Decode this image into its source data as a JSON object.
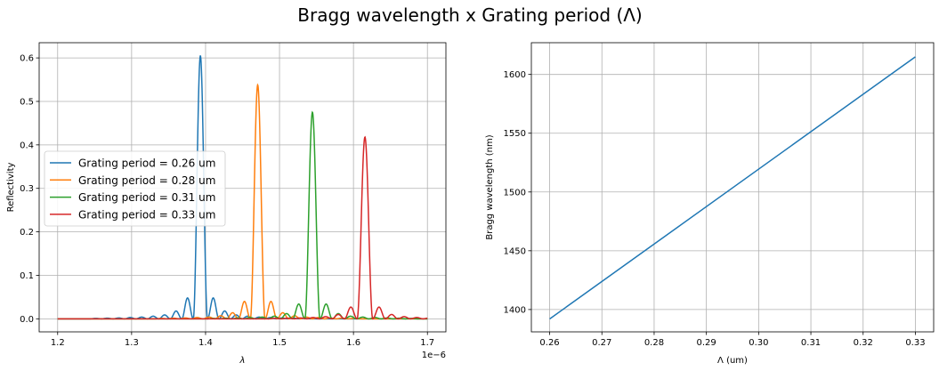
{
  "figure": {
    "title": "Bragg wavelength x Grating period (Λ)"
  },
  "chart_data": [
    {
      "type": "line",
      "xlabel": "λ",
      "ylabel": "Reflectivity",
      "x_offset_label": "1e−6",
      "xlim": [
        1.175,
        1.725
      ],
      "ylim": [
        -0.03,
        0.635
      ],
      "xticks": [
        1.2,
        1.3,
        1.4,
        1.5,
        1.6,
        1.7
      ],
      "xtick_labels": [
        "1.2",
        "1.3",
        "1.4",
        "1.5",
        "1.6",
        "1.7"
      ],
      "yticks": [
        0.0,
        0.1,
        0.2,
        0.3,
        0.4,
        0.5,
        0.6
      ],
      "ytick_labels": [
        "0.0",
        "0.1",
        "0.2",
        "0.3",
        "0.4",
        "0.5",
        "0.6"
      ],
      "grid": true,
      "legend_position": "center-left",
      "series": [
        {
          "name": "Grating period =  0.26 um",
          "color": "#1f77b4",
          "center": 1.393,
          "peak": 0.605,
          "sidelobe_spacing": 0.0155,
          "sidelobes": [
            0.048,
            0.018,
            0.009,
            0.006,
            0.004,
            0.003,
            0.002,
            0.0015,
            0.001
          ]
        },
        {
          "name": "Grating period =  0.28 um",
          "color": "#ff7f0e",
          "center": 1.4705,
          "peak": 0.538,
          "sidelobe_spacing": 0.016,
          "sidelobes": [
            0.04,
            0.014,
            0.007,
            0.004,
            0.003,
            0.002,
            0.0015,
            0.001
          ]
        },
        {
          "name": "Grating period =  0.31 um",
          "color": "#2ca02c",
          "center": 1.5445,
          "peak": 0.475,
          "sidelobe_spacing": 0.0165,
          "sidelobes": [
            0.034,
            0.012,
            0.006,
            0.004,
            0.003,
            0.002,
            0.0015,
            0.001
          ]
        },
        {
          "name": "Grating period =  0.33 um",
          "color": "#d62728",
          "center": 1.6155,
          "peak": 0.418,
          "sidelobe_spacing": 0.017,
          "sidelobes": [
            0.027,
            0.01,
            0.005,
            0.003,
            0.002,
            0.0015,
            0.001
          ]
        }
      ],
      "x_range": [
        1.2,
        1.7
      ]
    },
    {
      "type": "line",
      "xlabel": "Λ (um)",
      "ylabel": "Bragg wavelength (nm)",
      "xlim": [
        0.2565,
        0.3335
      ],
      "ylim": [
        1381,
        1627
      ],
      "xticks": [
        0.26,
        0.27,
        0.28,
        0.29,
        0.3,
        0.31,
        0.32,
        0.33
      ],
      "xtick_labels": [
        "0.26",
        "0.27",
        "0.28",
        "0.29",
        "0.30",
        "0.31",
        "0.32",
        "0.33"
      ],
      "yticks": [
        1400,
        1450,
        1500,
        1550,
        1600
      ],
      "ytick_labels": [
        "1400",
        "1450",
        "1500",
        "1550",
        "1600"
      ],
      "grid": true,
      "series": [
        {
          "color": "#1f77b4",
          "x": [
            0.26,
            0.33
          ],
          "y": [
            1392,
            1615
          ]
        }
      ]
    }
  ]
}
